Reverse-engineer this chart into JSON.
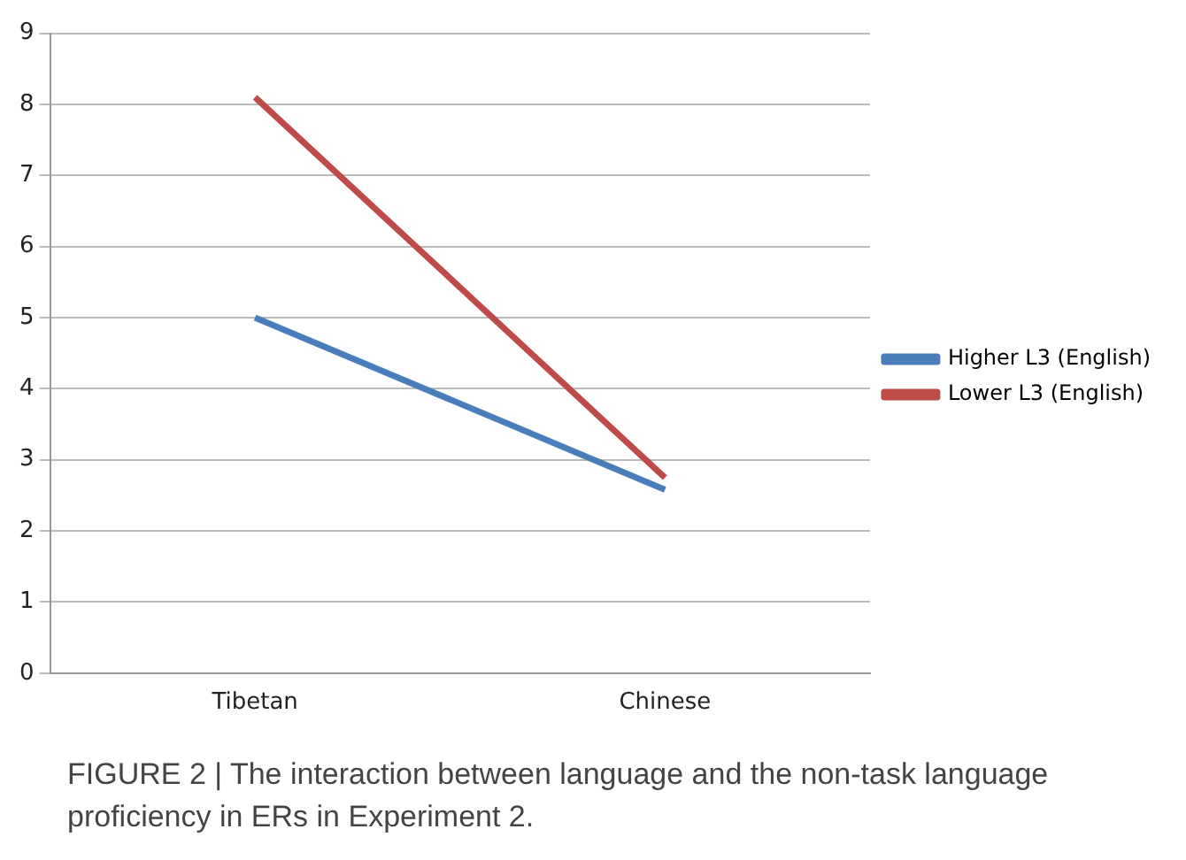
{
  "chart_data": {
    "type": "line",
    "categories": [
      "Tibetan",
      "Chinese"
    ],
    "series": [
      {
        "name": "Higher L3 (English)",
        "color": "#4a7ebb",
        "values": [
          5.0,
          2.58
        ]
      },
      {
        "name": "Lower L3 (English)",
        "color": "#be4b48",
        "values": [
          8.1,
          2.75
        ]
      }
    ],
    "ylim": [
      0,
      9
    ],
    "yticks": [
      0,
      1,
      2,
      3,
      4,
      5,
      6,
      7,
      8,
      9
    ],
    "grid": "y",
    "legend": "right",
    "marker": "none",
    "annotations": [
      "FIGURE 2 | The interaction between language and the non-task language proficiency in ERs in Experiment 2."
    ]
  }
}
